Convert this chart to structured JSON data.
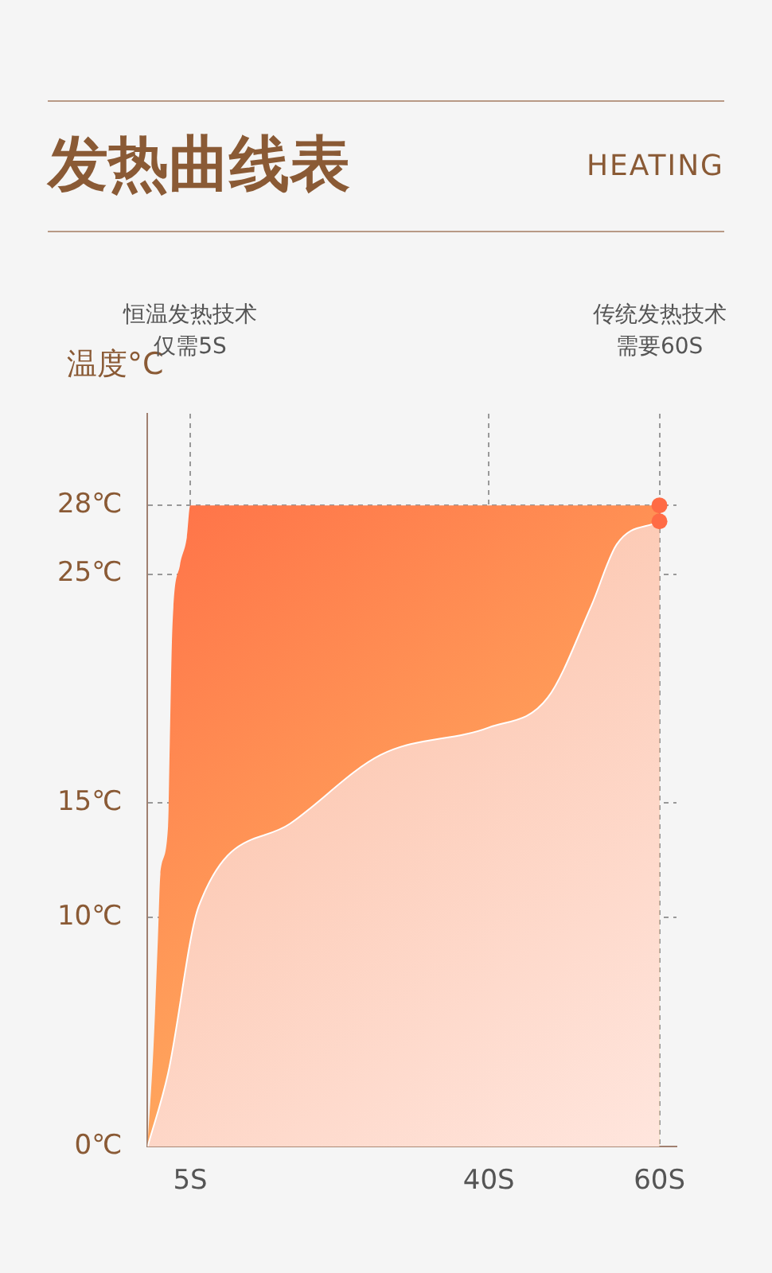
{
  "chart_data": {
    "type": "area",
    "title": "发热曲线表",
    "subtitle": "HEATING",
    "ylabel": "温度°C",
    "xlim": [
      0,
      62
    ],
    "ylim": [
      0,
      32
    ],
    "xticks": [
      {
        "value": 5,
        "label": "5S"
      },
      {
        "value": 40,
        "label": "40S"
      },
      {
        "value": 60,
        "label": "60S"
      }
    ],
    "yticks": [
      {
        "value": 0,
        "label": "0℃"
      },
      {
        "value": 10,
        "label": "10℃"
      },
      {
        "value": 15,
        "label": "15℃"
      },
      {
        "value": 25,
        "label": "25℃"
      },
      {
        "value": 28,
        "label": "28℃"
      }
    ],
    "grid": true,
    "line_style": "dashed",
    "series": [
      {
        "color": "#ff6b45",
        "x": [
          0,
          0.7,
          1.2,
          1.5,
          2.4,
          2.6,
          2.9,
          3.8,
          4.6,
          5,
          60
        ],
        "values": [
          0,
          4.4,
          9,
          11.9,
          14,
          17.6,
          22.6,
          25.4,
          26.6,
          28,
          28
        ]
      },
      {
        "color": "#fbb89a",
        "x": [
          0,
          2.4,
          6,
          16.7,
          27.3,
          40,
          46.9,
          52,
          55,
          60
        ],
        "values": [
          0,
          3.2,
          10.5,
          14.1,
          17.1,
          18.3,
          19.6,
          23.6,
          26.3,
          27.3
        ]
      }
    ],
    "annotations": [
      "恒温发热技术",
      "仅需5S",
      "传统发热技术",
      "需要60S"
    ]
  }
}
